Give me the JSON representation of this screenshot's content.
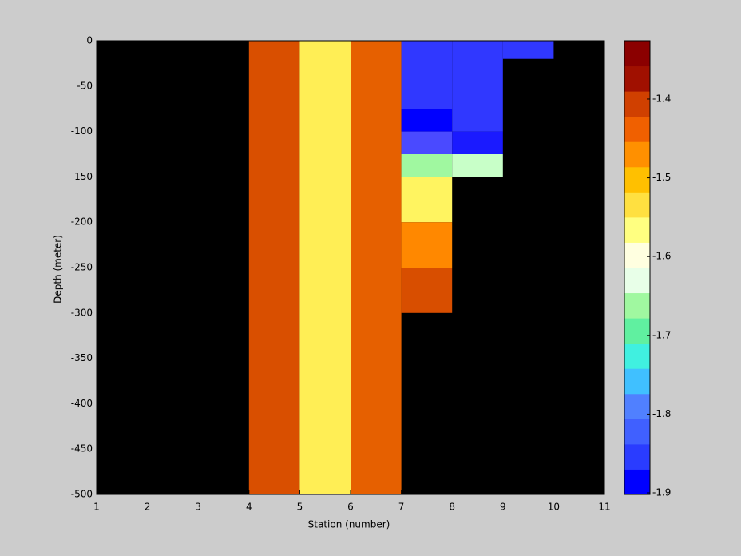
{
  "chart_data": {
    "type": "heatmap",
    "xlabel": "Station (number)",
    "ylabel": "Depth (meter)",
    "xlim": [
      1,
      11
    ],
    "xticks": [
      1,
      2,
      3,
      4,
      5,
      6,
      7,
      8,
      9,
      10,
      11
    ],
    "ylim": [
      -500,
      0
    ],
    "yticks": [
      0,
      -50,
      -100,
      -150,
      -200,
      -250,
      -300,
      -350,
      -400,
      -450,
      -500
    ],
    "background": "#000000",
    "clim": [
      -1.902,
      -1.326
    ],
    "cticks": [
      -1.4,
      -1.5,
      -1.6,
      -1.7,
      -1.8,
      -1.9
    ],
    "colormap": [
      "#0000ff",
      "#2a3cff",
      "#4060ff",
      "#5080ff",
      "#40c0ff",
      "#40f0e0",
      "#60f0a0",
      "#a0f8a0",
      "#e8ffe8",
      "#ffffe0",
      "#ffff80",
      "#ffe040",
      "#ffc000",
      "#ff9000",
      "#f06000",
      "#d04000",
      "#a01000",
      "#8b0000"
    ],
    "cells": [
      {
        "x0": 4,
        "x1": 5,
        "y0": -500,
        "y1": 0,
        "value": -1.37,
        "color": "#d94f00"
      },
      {
        "x0": 5,
        "x1": 6,
        "y0": -500,
        "y1": 0,
        "value": -1.52,
        "color": "#ffee55"
      },
      {
        "x0": 6,
        "x1": 7,
        "y0": -500,
        "y1": 0,
        "value": -1.39,
        "color": "#e66000"
      },
      {
        "x0": 7,
        "x1": 8,
        "y0": -75,
        "y1": 0,
        "value": -1.84,
        "color": "#3038ff"
      },
      {
        "x0": 7,
        "x1": 8,
        "y0": -100,
        "y1": -75,
        "value": -1.9,
        "color": "#0000ff"
      },
      {
        "x0": 7,
        "x1": 8,
        "y0": -125,
        "y1": -100,
        "value": -1.82,
        "color": "#4a4aff"
      },
      {
        "x0": 7,
        "x1": 8,
        "y0": -150,
        "y1": -125,
        "value": -1.68,
        "color": "#a0f8a0"
      },
      {
        "x0": 7,
        "x1": 8,
        "y0": -200,
        "y1": -150,
        "value": -1.53,
        "color": "#fff460"
      },
      {
        "x0": 7,
        "x1": 8,
        "y0": -250,
        "y1": -200,
        "value": -1.41,
        "color": "#ff8800"
      },
      {
        "x0": 7,
        "x1": 8,
        "y0": -300,
        "y1": -250,
        "value": -1.37,
        "color": "#d84e00"
      },
      {
        "x0": 8,
        "x1": 9,
        "y0": -100,
        "y1": 0,
        "value": -1.84,
        "color": "#3038ff"
      },
      {
        "x0": 8,
        "x1": 9,
        "y0": -125,
        "y1": -100,
        "value": -1.88,
        "color": "#1a1aff"
      },
      {
        "x0": 8,
        "x1": 9,
        "y0": -150,
        "y1": -125,
        "value": -1.64,
        "color": "#c8ffc8"
      },
      {
        "x0": 9,
        "x1": 10,
        "y0": -20,
        "y1": 0,
        "value": -1.84,
        "color": "#3038ff"
      }
    ]
  }
}
